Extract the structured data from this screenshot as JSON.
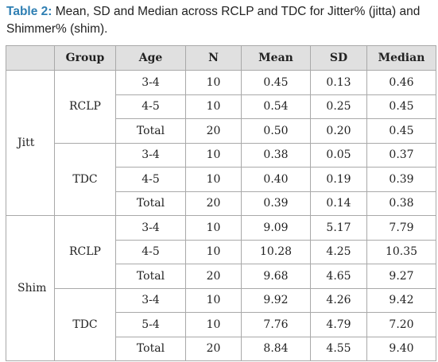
{
  "caption": {
    "label": "Table 2:",
    "text": " Mean, SD and Median across RCLP and TDC for Jitter% (jitta) and Shimmer% (shim)."
  },
  "table": {
    "headers": [
      "",
      "Group",
      "Age",
      "N",
      "Mean",
      "SD",
      "Median"
    ],
    "parameters": [
      {
        "name": "Jitt",
        "groups": [
          {
            "name": "RCLP",
            "rows": [
              {
                "age": "3-4",
                "n": "10",
                "mean": "0.45",
                "sd": "0.13",
                "median": "0.46"
              },
              {
                "age": "4-5",
                "n": "10",
                "mean": "0.54",
                "sd": "0.25",
                "median": "0.45"
              },
              {
                "age": "Total",
                "n": "20",
                "mean": "0.50",
                "sd": "0.20",
                "median": "0.45"
              }
            ]
          },
          {
            "name": "TDC",
            "rows": [
              {
                "age": "3-4",
                "n": "10",
                "mean": "0.38",
                "sd": "0.05",
                "median": "0.37"
              },
              {
                "age": "4-5",
                "n": "10",
                "mean": "0.40",
                "sd": "0.19",
                "median": "0.39"
              },
              {
                "age": "Total",
                "n": "20",
                "mean": "0.39",
                "sd": "0.14",
                "median": "0.38"
              }
            ]
          }
        ]
      },
      {
        "name": "Shim",
        "groups": [
          {
            "name": "RCLP",
            "rows": [
              {
                "age": "3-4",
                "n": "10",
                "mean": "9.09",
                "sd": "5.17",
                "median": "7.79"
              },
              {
                "age": "4-5",
                "n": "10",
                "mean": "10.28",
                "sd": "4.25",
                "median": "10.35"
              },
              {
                "age": "Total",
                "n": "20",
                "mean": "9.68",
                "sd": "4.65",
                "median": "9.27"
              }
            ]
          },
          {
            "name": "TDC",
            "rows": [
              {
                "age": "3-4",
                "n": "10",
                "mean": "9.92",
                "sd": "4.26",
                "median": "9.42"
              },
              {
                "age": "5-4",
                "n": "10",
                "mean": "7.76",
                "sd": "4.79",
                "median": "7.20"
              },
              {
                "age": "Total",
                "n": "20",
                "mean": "8.84",
                "sd": "4.55",
                "median": "9.40"
              }
            ]
          }
        ]
      }
    ]
  }
}
